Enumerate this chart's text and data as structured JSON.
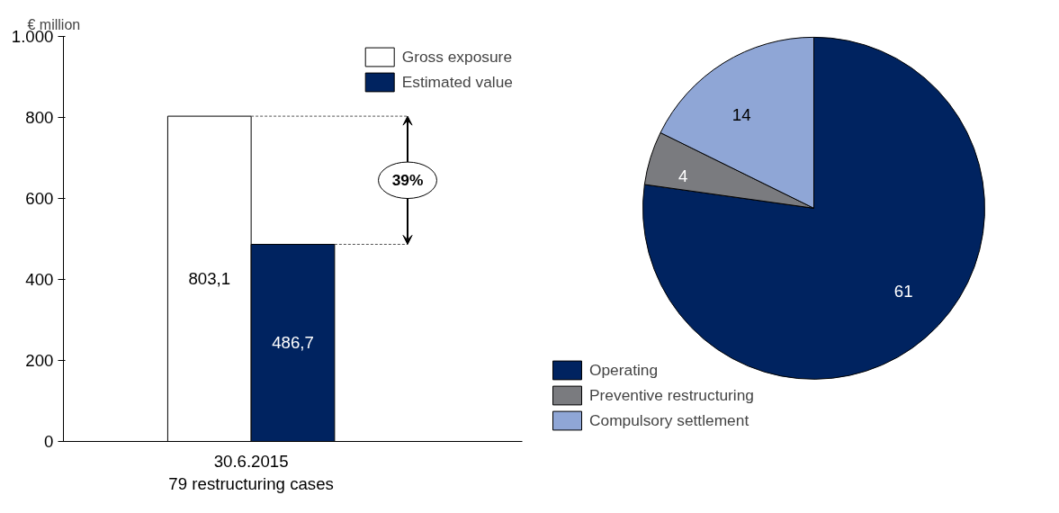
{
  "chart_data": [
    {
      "type": "bar",
      "ylabel": "€ million",
      "categories": [
        "30.6.2015\n79 restructuring cases"
      ],
      "series": [
        {
          "name": "Gross exposure",
          "color": "#ffffff",
          "values": [
            803.1
          ],
          "value_labels": [
            "803,1"
          ]
        },
        {
          "name": "Estimated value",
          "color": "#002360",
          "values": [
            486.7
          ],
          "value_labels": [
            "486,7"
          ]
        }
      ],
      "ylim": [
        0,
        1000
      ],
      "yticks": [
        0,
        200,
        400,
        600,
        800,
        {
          "value": 1000,
          "label": "1.000"
        }
      ],
      "annotations": [
        "39%"
      ],
      "legend": "top right",
      "grid": false
    },
    {
      "type": "pie",
      "categories": [
        "Operating",
        "Preventive restructuring",
        "Compulsory settlement"
      ],
      "values": [
        61,
        4,
        14
      ],
      "colors": [
        "#002360",
        "#7a7b7f",
        "#8fa6d6"
      ],
      "data_labels": true,
      "legend": "bottom left"
    }
  ]
}
